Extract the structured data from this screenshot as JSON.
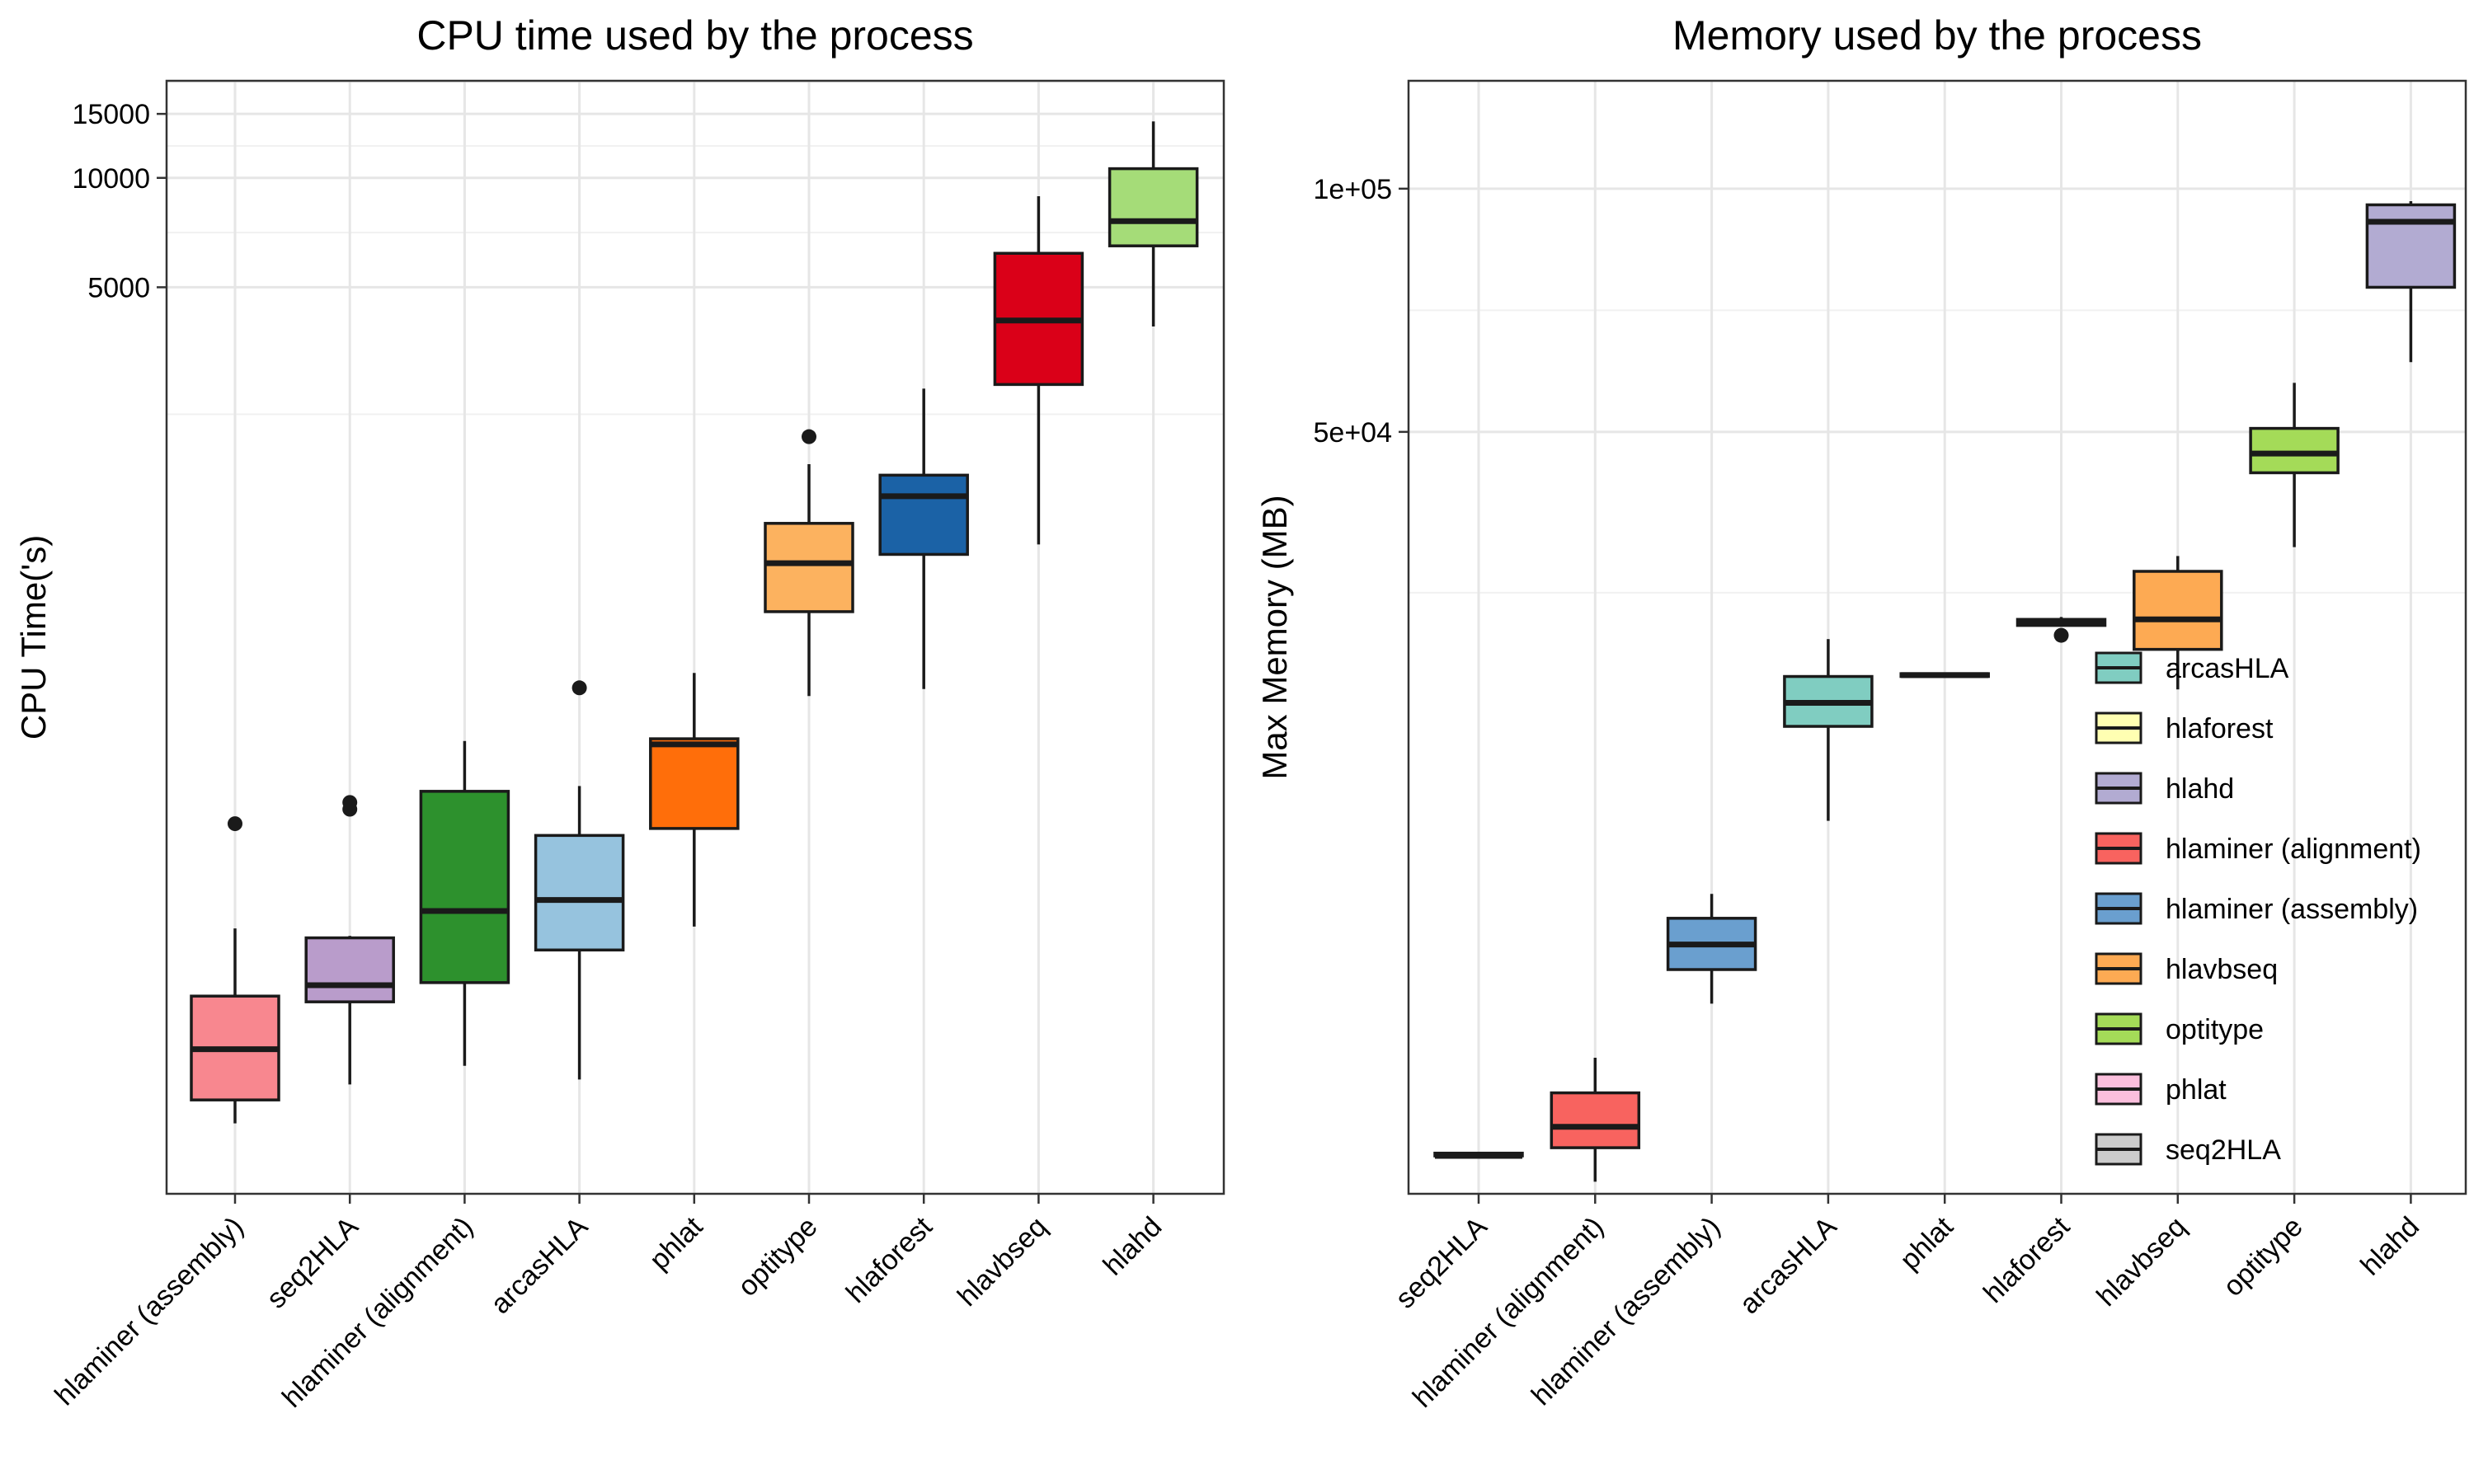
{
  "chart_data": [
    {
      "type": "boxplot",
      "title": "CPU time used by the process",
      "ylabel": "CPU Time('s)",
      "xlabel": "",
      "yscale": "log",
      "ylim": [
        16,
        18500
      ],
      "yticks": [
        5000,
        10000,
        15000
      ],
      "ytick_labels": [
        "5000",
        "10000",
        "15000"
      ],
      "grid": true,
      "boxes": [
        {
          "category": "hlaminer (assembly)",
          "color": "#F8878F",
          "whisker_low": 25,
          "q1": 29,
          "median": 40,
          "q3": 56,
          "whisker_high": 86,
          "outliers": [
            167
          ]
        },
        {
          "category": "seq2HLA",
          "color": "#B99CCB",
          "whisker_low": 32,
          "q1": 54,
          "median": 60,
          "q3": 81,
          "whisker_high": 82,
          "outliers": [
            183,
            191
          ]
        },
        {
          "category": "hlaminer (alignment)",
          "color": "#2D912D",
          "whisker_low": 36,
          "q1": 61,
          "median": 96,
          "q3": 205,
          "whisker_high": 282,
          "outliers": []
        },
        {
          "category": "arcasHLA",
          "color": "#96C3DE",
          "whisker_low": 33,
          "q1": 75,
          "median": 103,
          "q3": 155,
          "whisker_high": 212,
          "outliers": [
            395
          ]
        },
        {
          "category": "phlat",
          "color": "#FF6E0A",
          "whisker_low": 87,
          "q1": 162,
          "median": 276,
          "q3": 286,
          "whisker_high": 434,
          "outliers": []
        },
        {
          "category": "optitype",
          "color": "#FCB25F",
          "whisker_low": 375,
          "q1": 640,
          "median": 870,
          "q3": 1120,
          "whisker_high": 1630,
          "outliers": [
            1940
          ]
        },
        {
          "category": "hlaforest",
          "color": "#1B62A6",
          "whisker_low": 392,
          "q1": 920,
          "median": 1330,
          "q3": 1520,
          "whisker_high": 2630,
          "outliers": []
        },
        {
          "category": "hlavbseq",
          "color": "#DA0018",
          "whisker_low": 980,
          "q1": 2700,
          "median": 4050,
          "q3": 6200,
          "whisker_high": 8900,
          "outliers": []
        },
        {
          "category": "hlahd",
          "color": "#A5DC78",
          "whisker_low": 3900,
          "q1": 6500,
          "median": 7600,
          "q3": 10600,
          "whisker_high": 14300,
          "outliers": []
        }
      ]
    },
    {
      "type": "boxplot",
      "title": "Memory used by the process",
      "ylabel": "Max Memory (MB)",
      "xlabel": "",
      "yscale": "log",
      "ylim": [
        5700,
        136000
      ],
      "yticks": [
        50000,
        100000
      ],
      "ytick_labels": [
        "5e+04",
        "1e+05"
      ],
      "grid": true,
      "legend": {
        "position": "bottom-right",
        "entries": [
          {
            "label": "arcasHLA",
            "color": "#80CDC1"
          },
          {
            "label": "hlaforest",
            "color": "#FFFFB2"
          },
          {
            "label": "hlahd",
            "color": "#B2ABD2"
          },
          {
            "label": "hlaminer (alignment)",
            "color": "#F8635F"
          },
          {
            "label": "hlaminer (assembly)",
            "color": "#6A9FCF"
          },
          {
            "label": "hlavbseq",
            "color": "#FDAA53"
          },
          {
            "label": "optitype",
            "color": "#A4DB58"
          },
          {
            "label": "phlat",
            "color": "#FBBFDD"
          },
          {
            "label": "seq2HLA",
            "color": "#CCCCCC"
          }
        ]
      },
      "boxes": [
        {
          "category": "seq2HLA",
          "color": "#CCCCCC",
          "whisker_low": 6350,
          "q1": 6350,
          "median": 6350,
          "q3": 6400,
          "whisker_high": 6400,
          "outliers": []
        },
        {
          "category": "hlaminer (alignment)",
          "color": "#F8635F",
          "whisker_low": 5900,
          "q1": 6500,
          "median": 6900,
          "q3": 7600,
          "whisker_high": 8400,
          "outliers": []
        },
        {
          "category": "hlaminer (assembly)",
          "color": "#6A9FCF",
          "whisker_low": 9800,
          "q1": 10800,
          "median": 11600,
          "q3": 12500,
          "whisker_high": 13400,
          "outliers": []
        },
        {
          "category": "arcasHLA",
          "color": "#80CDC1",
          "whisker_low": 16500,
          "q1": 21600,
          "median": 23100,
          "q3": 24900,
          "whisker_high": 27700,
          "outliers": []
        },
        {
          "category": "phlat",
          "color": "#FBBFDD",
          "whisker_low": 24900,
          "q1": 24900,
          "median": 25000,
          "q3": 25100,
          "whisker_high": 25100,
          "outliers": []
        },
        {
          "category": "hlaforest",
          "color": "#FFFFB2",
          "whisker_low": 28800,
          "q1": 28800,
          "median": 29000,
          "q3": 29300,
          "whisker_high": 29500,
          "outliers": [
            28000
          ]
        },
        {
          "category": "hlavbseq",
          "color": "#FDAA53",
          "whisker_low": 24000,
          "q1": 26900,
          "median": 29300,
          "q3": 33600,
          "whisker_high": 35100,
          "outliers": []
        },
        {
          "category": "optitype",
          "color": "#A4DB58",
          "whisker_low": 36000,
          "q1": 44500,
          "median": 47000,
          "q3": 50500,
          "whisker_high": 57500,
          "outliers": []
        },
        {
          "category": "hlahd",
          "color": "#B2ABD2",
          "whisker_low": 61000,
          "q1": 75500,
          "median": 91000,
          "q3": 95500,
          "whisker_high": 96500,
          "outliers": []
        }
      ]
    }
  ]
}
